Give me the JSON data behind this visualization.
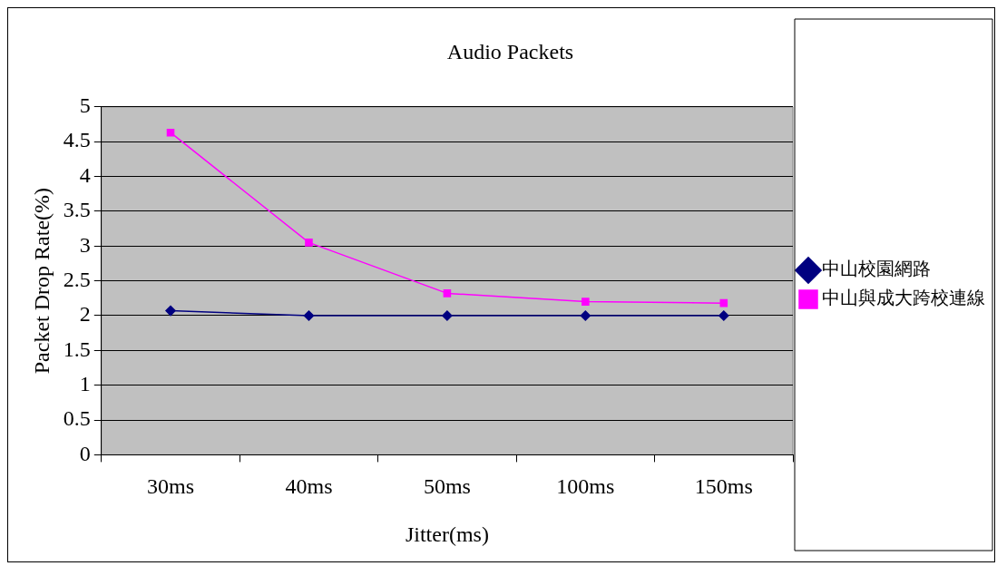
{
  "chart_data": {
    "type": "line",
    "title": "Audio Packets",
    "xlabel": "Jitter(ms)",
    "ylabel": "Packet Drop Rate(%)",
    "categories": [
      "30ms",
      "40ms",
      "50ms",
      "100ms",
      "150ms"
    ],
    "series": [
      {
        "name": "中山校園網路",
        "color": "#000080",
        "marker": "diamond",
        "values": [
          2.07,
          2.0,
          2.0,
          2.0,
          2.0
        ]
      },
      {
        "name": "中山與成大跨校連線",
        "color": "#ff00ff",
        "marker": "square",
        "values": [
          4.63,
          3.05,
          2.32,
          2.2,
          2.18
        ]
      }
    ],
    "ylim": [
      0,
      5
    ],
    "yticks": [
      0,
      0.5,
      1,
      1.5,
      2,
      2.5,
      3,
      3.5,
      4,
      4.5,
      5
    ],
    "grid": "y",
    "legend": "right",
    "line_style": "solid"
  }
}
